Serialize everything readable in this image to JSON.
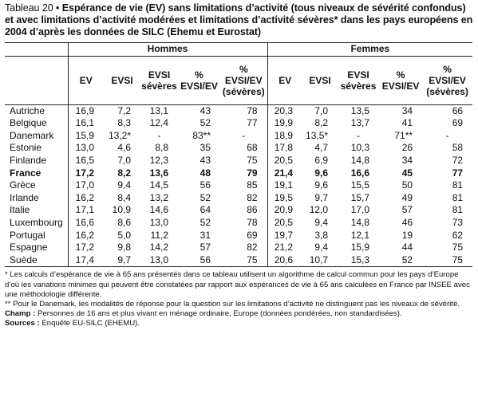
{
  "title": {
    "label": "Tableau 20 •",
    "text": "Espérance de vie (EV) sans limitations d’activité (tous niveaux de sévérité confondus) et avec limitations d’activité modérées et limitations d’activité sévères* dans les pays européens en 2004 d’après les données de SILC (Ehemu et Eurostat)"
  },
  "groups": {
    "men": "Hommes",
    "women": "Femmes"
  },
  "columns": {
    "ev": "EV",
    "evsi": "EVSI",
    "evsi_sev": [
      "EVSI",
      "sévères"
    ],
    "pct": [
      "%",
      "EVSI/EV"
    ],
    "pct_sev": [
      "%",
      "EVSI/EV",
      "(sévères)"
    ]
  },
  "rows": [
    {
      "country": "Autriche",
      "men": [
        "16,9",
        "7,2",
        "13,1",
        "43",
        "78"
      ],
      "women": [
        "20,3",
        "7,0",
        "13,5",
        "34",
        "66"
      ]
    },
    {
      "country": "Belgique",
      "men": [
        "16,1",
        "8,3",
        "12,4",
        "52",
        "77"
      ],
      "women": [
        "19,9",
        "8,2",
        "13,7",
        "41",
        "69"
      ]
    },
    {
      "country": "Danemark",
      "men": [
        "15,9",
        "13,2*",
        "-",
        "83**",
        "-"
      ],
      "women": [
        "18,9",
        "13,5*",
        "-",
        "71**",
        "-"
      ]
    },
    {
      "country": "Estonie",
      "men": [
        "13,0",
        "4,6",
        "8,8",
        "35",
        "68"
      ],
      "women": [
        "17,8",
        "4,7",
        "10,3",
        "26",
        "58"
      ]
    },
    {
      "country": "Finlande",
      "men": [
        "16,5",
        "7,0",
        "12,3",
        "43",
        "75"
      ],
      "women": [
        "20,5",
        "6,9",
        "14,8",
        "34",
        "72"
      ]
    },
    {
      "country": "France",
      "bold": true,
      "men": [
        "17,2",
        "8,2",
        "13,6",
        "48",
        "79"
      ],
      "women": [
        "21,4",
        "9,6",
        "16,6",
        "45",
        "77"
      ]
    },
    {
      "country": "Grèce",
      "men": [
        "17,0",
        "9,4",
        "14,5",
        "56",
        "85"
      ],
      "women": [
        "19,1",
        "9,6",
        "15,5",
        "50",
        "81"
      ]
    },
    {
      "country": "Irlande",
      "men": [
        "16,2",
        "8,4",
        "13,2",
        "52",
        "82"
      ],
      "women": [
        "19,5",
        "9,7",
        "15,7",
        "49",
        "81"
      ]
    },
    {
      "country": "Italie",
      "men": [
        "17,1",
        "10,9",
        "14,6",
        "64",
        "86"
      ],
      "women": [
        "20,9",
        "12,0",
        "17,0",
        "57",
        "81"
      ]
    },
    {
      "country": "Luxembourg",
      "men": [
        "16,6",
        "8,6",
        "13,0",
        "52",
        "78"
      ],
      "women": [
        "20,5",
        "9,4",
        "14,8",
        "46",
        "73"
      ]
    },
    {
      "country": "Portugal",
      "men": [
        "16,2",
        "5,0",
        "11,2",
        "31",
        "69"
      ],
      "women": [
        "19,7",
        "3,8",
        "12,1",
        "19",
        "62"
      ]
    },
    {
      "country": "Espagne",
      "men": [
        "17,2",
        "9,8",
        "14,2",
        "57",
        "82"
      ],
      "women": [
        "21,2",
        "9,4",
        "15,9",
        "44",
        "75"
      ]
    },
    {
      "country": "Suède",
      "men": [
        "17,4",
        "9,7",
        "13,0",
        "56",
        "75"
      ],
      "women": [
        "20,6",
        "10,7",
        "15,3",
        "52",
        "75"
      ]
    }
  ],
  "notes": {
    "n1": "* Les calculs d’espérance de vie à 65 ans présentés dans ce tableau utilisent un algorithme de calcul commun pour les pays d’Europe d’où les variations minimes qui peuvent être constatées par rapport aux espérances de vie à 65 ans calculées en France par INSEE avec une méthodologie différente.",
    "n2": "** Pour le Danemark, les modalités de réponse pour la question sur les limitations d’activité ne distinguent pas les niveaux de sévérité.",
    "champ_label": "Champ :",
    "champ": " Personnes de 16 ans et plus vivant en ménage ordinaire, Europe (données pondérées, non standardisées).",
    "sources_label": "Sources :",
    "sources": " Enquête EU-SILC (EHEMU)."
  }
}
